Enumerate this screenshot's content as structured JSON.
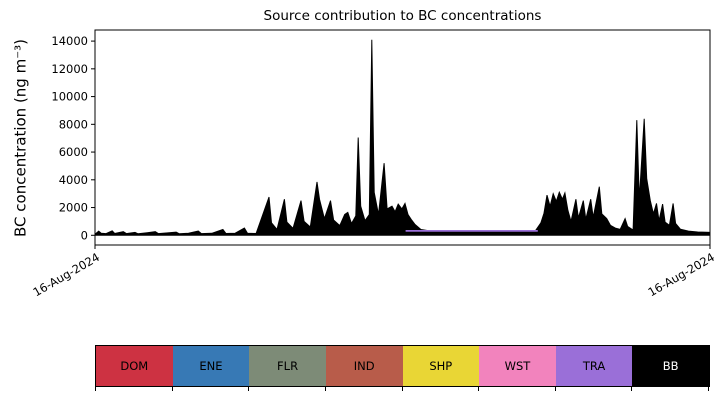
{
  "chart_data": {
    "type": "area",
    "title": "Source contribution to BC concentrations",
    "ylabel": "BC concentration (ng m⁻³)",
    "xticks": [
      "16-Aug-2024",
      "16-Aug-2024"
    ],
    "yticks": [
      0,
      2000,
      4000,
      6000,
      8000,
      10000,
      12000,
      14000
    ],
    "ylim": [
      -700,
      14800
    ],
    "grid": false,
    "legend_position": "bottom-strip",
    "series": [
      {
        "name": "BB-total-black-area",
        "type": "area",
        "color": "#000000",
        "points": [
          [
            0.0,
            80
          ],
          [
            0.006,
            300
          ],
          [
            0.01,
            140
          ],
          [
            0.018,
            120
          ],
          [
            0.028,
            320
          ],
          [
            0.032,
            130
          ],
          [
            0.046,
            260
          ],
          [
            0.051,
            120
          ],
          [
            0.065,
            210
          ],
          [
            0.07,
            110
          ],
          [
            0.085,
            190
          ],
          [
            0.098,
            260
          ],
          [
            0.103,
            120
          ],
          [
            0.118,
            170
          ],
          [
            0.132,
            230
          ],
          [
            0.137,
            110
          ],
          [
            0.152,
            150
          ],
          [
            0.168,
            310
          ],
          [
            0.173,
            120
          ],
          [
            0.19,
            140
          ],
          [
            0.208,
            420
          ],
          [
            0.213,
            130
          ],
          [
            0.228,
            150
          ],
          [
            0.243,
            520
          ],
          [
            0.248,
            150
          ],
          [
            0.262,
            130
          ],
          [
            0.283,
            2750
          ],
          [
            0.287,
            900
          ],
          [
            0.296,
            420
          ],
          [
            0.308,
            2600
          ],
          [
            0.312,
            950
          ],
          [
            0.322,
            500
          ],
          [
            0.335,
            2500
          ],
          [
            0.34,
            1000
          ],
          [
            0.35,
            600
          ],
          [
            0.361,
            3850
          ],
          [
            0.365,
            2600
          ],
          [
            0.373,
            1200
          ],
          [
            0.383,
            2500
          ],
          [
            0.388,
            1100
          ],
          [
            0.398,
            700
          ],
          [
            0.406,
            1500
          ],
          [
            0.411,
            1650
          ],
          [
            0.417,
            850
          ],
          [
            0.424,
            1400
          ],
          [
            0.428,
            7050
          ],
          [
            0.432,
            2100
          ],
          [
            0.439,
            1050
          ],
          [
            0.446,
            1500
          ],
          [
            0.45,
            14100
          ],
          [
            0.454,
            3100
          ],
          [
            0.461,
            1500
          ],
          [
            0.47,
            5200
          ],
          [
            0.475,
            1900
          ],
          [
            0.483,
            2100
          ],
          [
            0.488,
            1700
          ],
          [
            0.493,
            2250
          ],
          [
            0.499,
            1900
          ],
          [
            0.504,
            2300
          ],
          [
            0.509,
            1500
          ],
          [
            0.514,
            1150
          ],
          [
            0.52,
            800
          ],
          [
            0.53,
            420
          ],
          [
            0.545,
            310
          ],
          [
            0.57,
            285
          ],
          [
            0.6,
            275
          ],
          [
            0.63,
            268
          ],
          [
            0.66,
            262
          ],
          [
            0.69,
            258
          ],
          [
            0.715,
            255
          ],
          [
            0.725,
            900
          ],
          [
            0.73,
            1600
          ],
          [
            0.735,
            2900
          ],
          [
            0.74,
            2100
          ],
          [
            0.745,
            3000
          ],
          [
            0.75,
            2450
          ],
          [
            0.755,
            3100
          ],
          [
            0.76,
            2600
          ],
          [
            0.764,
            3050
          ],
          [
            0.769,
            1800
          ],
          [
            0.774,
            1000
          ],
          [
            0.782,
            2600
          ],
          [
            0.786,
            1250
          ],
          [
            0.794,
            2500
          ],
          [
            0.798,
            1150
          ],
          [
            0.806,
            2600
          ],
          [
            0.81,
            1300
          ],
          [
            0.82,
            3500
          ],
          [
            0.824,
            1550
          ],
          [
            0.832,
            1200
          ],
          [
            0.838,
            720
          ],
          [
            0.846,
            520
          ],
          [
            0.854,
            430
          ],
          [
            0.862,
            1200
          ],
          [
            0.866,
            640
          ],
          [
            0.875,
            380
          ],
          [
            0.881,
            8300
          ],
          [
            0.885,
            2600
          ],
          [
            0.893,
            8400
          ],
          [
            0.897,
            4100
          ],
          [
            0.903,
            2500
          ],
          [
            0.908,
            1550
          ],
          [
            0.913,
            2300
          ],
          [
            0.917,
            1050
          ],
          [
            0.923,
            2250
          ],
          [
            0.927,
            950
          ],
          [
            0.934,
            720
          ],
          [
            0.94,
            2300
          ],
          [
            0.944,
            850
          ],
          [
            0.952,
            430
          ],
          [
            0.965,
            300
          ],
          [
            0.98,
            240
          ],
          [
            1.0,
            210
          ]
        ]
      },
      {
        "name": "TRA-purple-line",
        "type": "line",
        "color": "#9a6fd8",
        "points": [
          [
            0.505,
            320
          ],
          [
            0.72,
            320
          ]
        ]
      }
    ]
  },
  "legend": {
    "items": [
      {
        "label": "DOM",
        "color": "#cd3242",
        "text": "#000000"
      },
      {
        "label": "ENE",
        "color": "#3779b5",
        "text": "#000000"
      },
      {
        "label": "FLR",
        "color": "#7d8b77",
        "text": "#000000"
      },
      {
        "label": "IND",
        "color": "#b85c4a",
        "text": "#000000"
      },
      {
        "label": "SHP",
        "color": "#e9d635",
        "text": "#000000"
      },
      {
        "label": "WST",
        "color": "#f283bd",
        "text": "#000000"
      },
      {
        "label": "TRA",
        "color": "#9a6fd8",
        "text": "#000000"
      },
      {
        "label": "BB",
        "color": "#000000",
        "text": "#ffffff"
      }
    ]
  }
}
